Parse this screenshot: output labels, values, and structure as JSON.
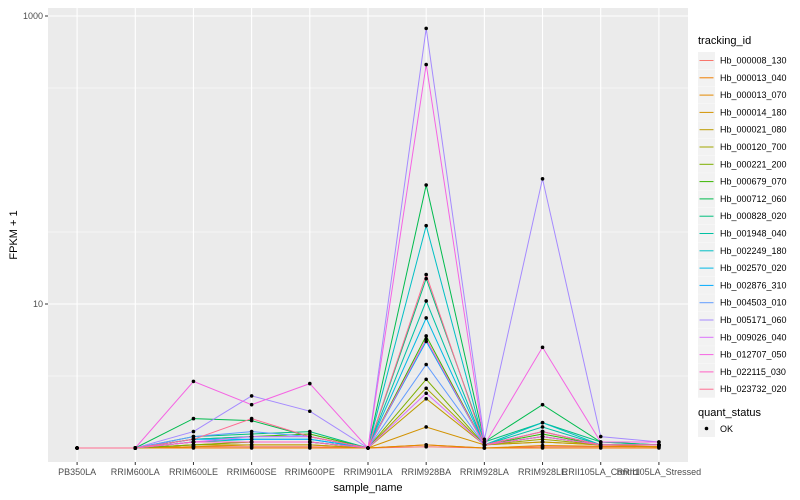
{
  "chart_data": {
    "type": "line",
    "scale": "log10",
    "xlabel": "sample_name",
    "ylabel": "FPKM + 1",
    "ylim": [
      1,
      1000
    ],
    "y_ticks": [
      10,
      1000
    ],
    "y_tick_labels": [
      "10",
      "1000"
    ],
    "grid": true,
    "categories": [
      "PB350LA",
      "RRIM600LA",
      "RRIM600LE",
      "RRIM600SE",
      "RRIM600PE",
      "RRIM901LA",
      "RRIM928BA",
      "RRIM928LA",
      "RRIM928LE",
      "RRII105LA_Control",
      "RRII105LA_Stressed"
    ],
    "category_labels": [
      "PB350LA",
      "RRIM600LA",
      "RRIM600LE",
      "RRIM600SE",
      "RRIM600PE",
      "RRIM901LA",
      "RRIM928BA",
      "RRIM928LA",
      "RRIM928LE",
      "RRII105LA_Control",
      "RRII105LA_Stressed"
    ],
    "legend_title": "tracking_id",
    "legend_position": "right",
    "shape_legend_title": "quant_status",
    "shape_legend_label": "OK",
    "series": [
      {
        "name": "Hb_000008_130",
        "color": "#F8766D",
        "values": [
          1,
          1,
          1.02,
          1.02,
          1.02,
          1,
          1.02,
          1,
          1.02,
          1.02,
          1.02
        ]
      },
      {
        "name": "Hb_000013_040",
        "color": "#F07E00",
        "values": [
          1,
          1,
          1,
          1,
          1,
          1,
          1.05,
          1,
          1,
          1,
          1
        ]
      },
      {
        "name": "Hb_000013_070",
        "color": "#E38900",
        "values": [
          1,
          1,
          1.02,
          1.05,
          1.05,
          1,
          1.05,
          1,
          1.04,
          1.03,
          1.02
        ]
      },
      {
        "name": "Hb_000014_180",
        "color": "#D29200",
        "values": [
          1,
          1,
          1.05,
          1.1,
          1.1,
          1,
          1.4,
          1.05,
          1.1,
          1.05,
          1.02
        ]
      },
      {
        "name": "Hb_000021_080",
        "color": "#BE9C00",
        "values": [
          1,
          1,
          1.05,
          1.05,
          1.05,
          1,
          2.2,
          1.05,
          1.1,
          1.05,
          1.05
        ]
      },
      {
        "name": "Hb_000120_700",
        "color": "#A3A500",
        "values": [
          1,
          1,
          1.1,
          1.1,
          1.1,
          1,
          2.6,
          1.05,
          1.15,
          1.05,
          1.05
        ]
      },
      {
        "name": "Hb_000221_200",
        "color": "#7CAE00",
        "values": [
          1,
          1,
          1.05,
          1.1,
          1.1,
          1,
          3.0,
          1.05,
          1.2,
          1.05,
          1.05
        ]
      },
      {
        "name": "Hb_000679_070",
        "color": "#39B600",
        "values": [
          1,
          1,
          1.15,
          1.2,
          1.25,
          1,
          6.0,
          1.05,
          1.25,
          1.05,
          1.05
        ]
      },
      {
        "name": "Hb_000712_060",
        "color": "#00BB4E",
        "values": [
          1,
          1,
          1.6,
          1.55,
          1.2,
          1,
          67,
          1.1,
          2.0,
          1.1,
          1.05
        ]
      },
      {
        "name": "Hb_000828_020",
        "color": "#00BF7D",
        "values": [
          1,
          1,
          1.2,
          1.25,
          1.3,
          1,
          15,
          1.1,
          1.5,
          1.1,
          1.05
        ]
      },
      {
        "name": "Hb_001948_040",
        "color": "#00C1A3",
        "values": [
          1,
          1,
          1.15,
          1.2,
          1.2,
          1,
          10.5,
          1.05,
          1.4,
          1.05,
          1.05
        ]
      },
      {
        "name": "Hb_002249_180",
        "color": "#00BFC4",
        "values": [
          1,
          1,
          1.1,
          1.15,
          1.15,
          1,
          35,
          1.05,
          1.5,
          1.05,
          1.05
        ]
      },
      {
        "name": "Hb_002570_020",
        "color": "#00B8E5",
        "values": [
          1,
          1,
          1.1,
          1.1,
          1.1,
          1,
          8.0,
          1.05,
          1.3,
          1.05,
          1.05
        ]
      },
      {
        "name": "Hb_002876_310",
        "color": "#00ABFD",
        "values": [
          1,
          1,
          1.15,
          1.15,
          1.15,
          1,
          5.5,
          1.05,
          1.2,
          1.05,
          1.05
        ]
      },
      {
        "name": "Hb_004503_010",
        "color": "#619CFF",
        "values": [
          1,
          1,
          1.2,
          1.3,
          1.2,
          1,
          3.8,
          1.05,
          1.3,
          1.05,
          1.05
        ]
      },
      {
        "name": "Hb_005171_060",
        "color": "#A58AFF",
        "values": [
          1,
          1,
          1.3,
          2.3,
          1.8,
          1,
          820,
          1.15,
          74,
          1.2,
          1.1
        ]
      },
      {
        "name": "Hb_009026_040",
        "color": "#DB72FB",
        "values": [
          1,
          1,
          1.1,
          1.2,
          1.2,
          1,
          2.4,
          1.05,
          1.3,
          1.05,
          1.05
        ]
      },
      {
        "name": "Hb_012707_050",
        "color": "#F564E3",
        "values": [
          1,
          1,
          2.9,
          2.0,
          2.8,
          1,
          460,
          1.05,
          5.0,
          1.1,
          1.1
        ]
      },
      {
        "name": "Hb_022115_030",
        "color": "#FF61C3",
        "values": [
          1,
          1,
          1.1,
          1.1,
          1.1,
          1,
          5.7,
          1.05,
          1.2,
          1.05,
          1.05
        ]
      },
      {
        "name": "Hb_023732_020",
        "color": "#FF6C91",
        "values": [
          1,
          1,
          1.15,
          1.6,
          1.2,
          1,
          16,
          1.05,
          1.3,
          1.05,
          1.05
        ]
      }
    ]
  }
}
